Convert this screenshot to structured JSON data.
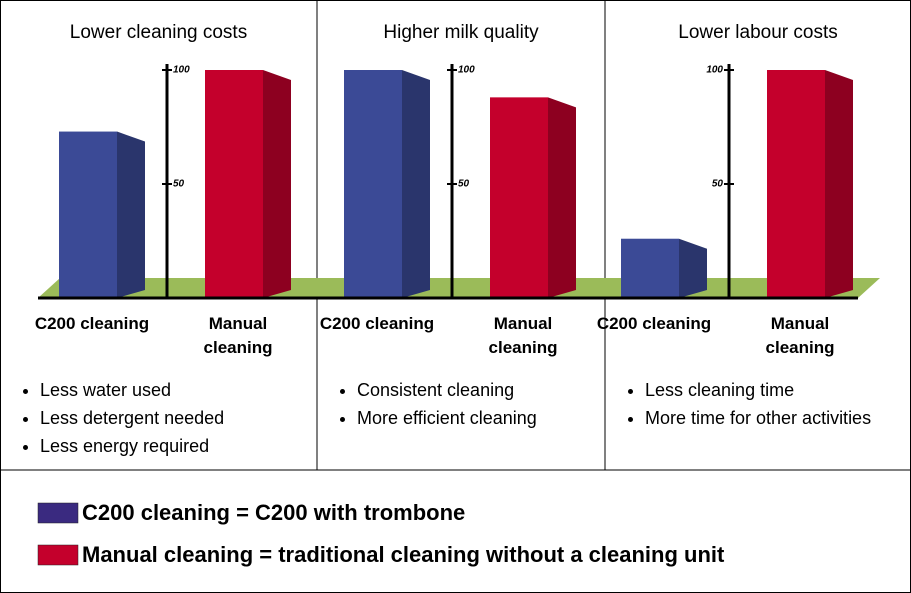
{
  "chart_data": [
    {
      "type": "bar",
      "title": "Lower cleaning costs",
      "categories": [
        "C200 cleaning",
        "Manual cleaning"
      ],
      "values": [
        73,
        100
      ],
      "colors": [
        "#3b4a96",
        "#c4002c"
      ],
      "ylim": [
        0,
        100
      ],
      "yticks": [
        50,
        100
      ],
      "notes": [
        "Less water used",
        "Less detergent needed",
        "Less energy required"
      ]
    },
    {
      "type": "bar",
      "title": "Higher milk quality",
      "categories": [
        "C200 cleaning",
        "Manual cleaning"
      ],
      "values": [
        100,
        88
      ],
      "colors": [
        "#3b4a96",
        "#c4002c"
      ],
      "ylim": [
        0,
        100
      ],
      "yticks": [
        50,
        100
      ],
      "notes": [
        "Consistent cleaning",
        "More efficient cleaning"
      ]
    },
    {
      "type": "bar",
      "title": "Lower labour costs",
      "categories": [
        "C200 cleaning",
        "Manual cleaning"
      ],
      "values": [
        26,
        100
      ],
      "colors": [
        "#3b4a96",
        "#c4002c"
      ],
      "ylim": [
        0,
        100
      ],
      "yticks": [
        50,
        100
      ],
      "notes": [
        "Less cleaning time",
        "More time for other activities"
      ]
    }
  ],
  "legend": {
    "items": [
      {
        "color": "#3a2a80",
        "label": "C200 cleaning = C200 with trombone"
      },
      {
        "color": "#c4002c",
        "label": "Manual cleaning = traditional cleaning without a cleaning unit"
      }
    ]
  }
}
